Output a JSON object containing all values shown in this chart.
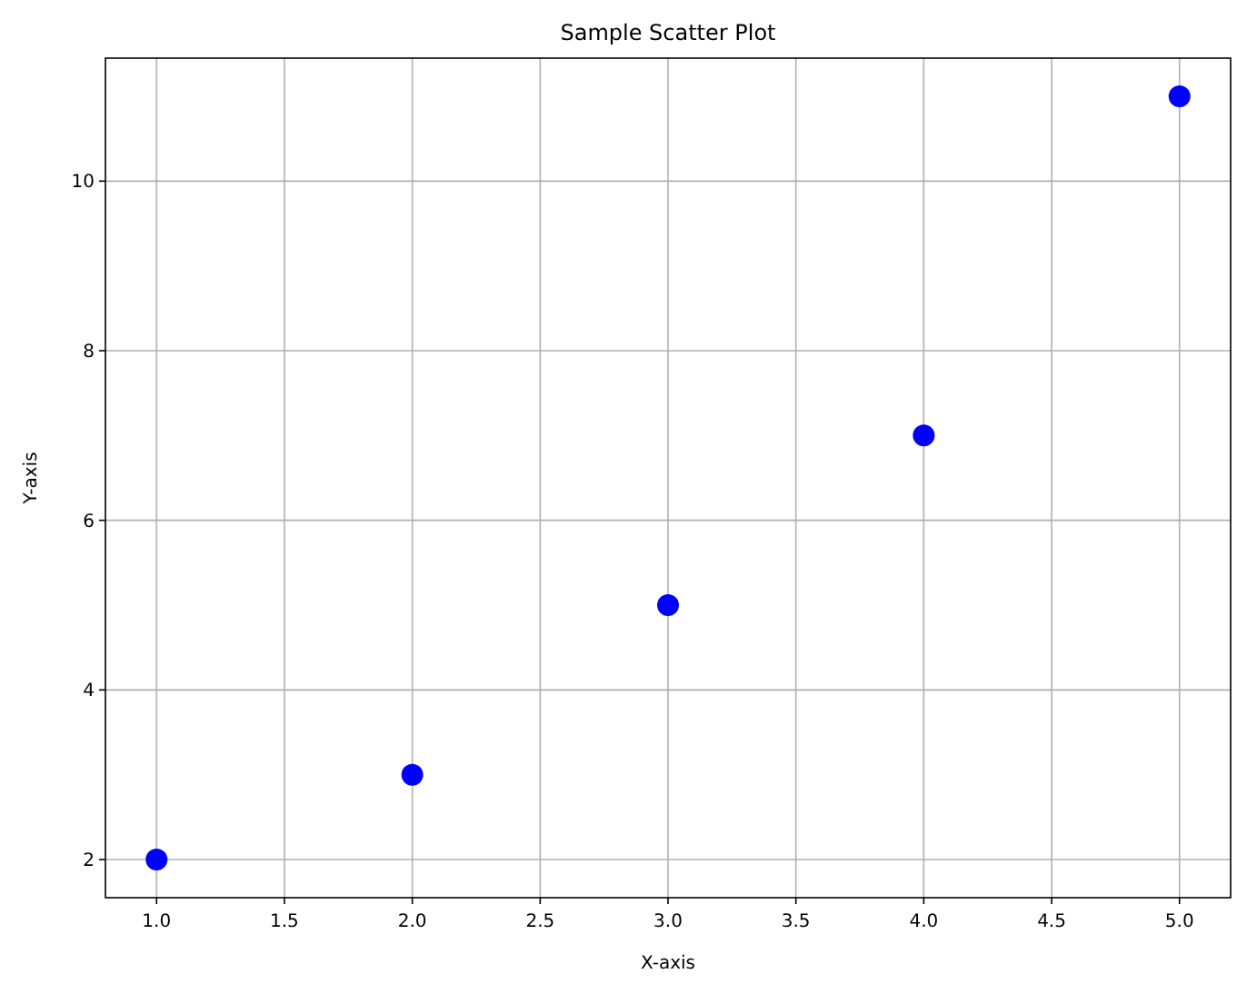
{
  "chart_data": {
    "type": "scatter",
    "title": "Sample Scatter Plot",
    "xlabel": "X-axis",
    "ylabel": "Y-axis",
    "x": [
      1,
      2,
      3,
      4,
      5
    ],
    "values": [
      2,
      3,
      5,
      7,
      11
    ],
    "color": "#0000ff",
    "marker": "circle",
    "grid": true,
    "xlim": [
      0.8,
      5.2
    ],
    "xticks": [
      {
        "value": 1,
        "label": "1.0"
      },
      {
        "value": 1.5,
        "label": "1.5"
      },
      {
        "value": 2,
        "label": "2.0"
      },
      {
        "value": 2.5,
        "label": "2.5"
      },
      {
        "value": 3,
        "label": "3.0"
      },
      {
        "value": 3.5,
        "label": "3.5"
      },
      {
        "value": 4,
        "label": "4.0"
      },
      {
        "value": 4.5,
        "label": "4.5"
      },
      {
        "value": 5,
        "label": "5.0"
      }
    ],
    "ylim": [
      1.55,
      11.45
    ],
    "yticks": [
      2,
      4,
      6,
      8,
      10
    ]
  }
}
